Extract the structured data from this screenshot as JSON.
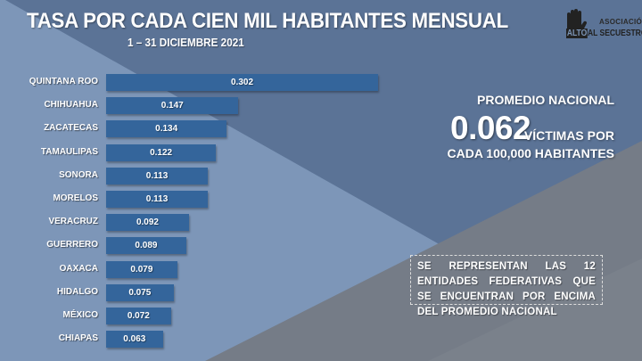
{
  "header": {
    "title": "TASA POR CADA CIEN MIL HABITANTES MENSUAL",
    "subtitle": "1 – 31 DICIEMBRE 2021"
  },
  "logo": {
    "small": "ASOCIACIÓN",
    "alto": "ALTO",
    "name": "AL SECUESTRO"
  },
  "colors": {
    "bar": "#34659b",
    "background_dark": "#5b7396",
    "background_light": "#7d96b8",
    "background_grey": "#757c87"
  },
  "chart_data": {
    "type": "bar",
    "orientation": "horizontal",
    "categories": [
      "QUINTANA ROO",
      "CHIHUAHUA",
      "ZACATECAS",
      "TAMAULIPAS",
      "SONORA",
      "MORELOS",
      "VERACRUZ",
      "GUERRERO",
      "OAXACA",
      "HIDALGO",
      "MÉXICO",
      "CHIAPAS"
    ],
    "values": [
      0.302,
      0.147,
      0.134,
      0.122,
      0.113,
      0.113,
      0.092,
      0.089,
      0.079,
      0.075,
      0.072,
      0.063
    ],
    "value_labels": [
      "0.302",
      "0.147",
      "0.134",
      "0.122",
      "0.113",
      "0.113",
      "0.092",
      "0.089",
      "0.079",
      "0.075",
      "0.072",
      "0.063"
    ],
    "title": "TASA POR CADA CIEN MIL HABITANTES MENSUAL",
    "grid": false
  },
  "promedio": {
    "label": "PROMEDIO NACIONAL",
    "value": "0.062",
    "unit_line1": "VÍCTIMAS POR",
    "unit_line2": "CADA 100,000 HABITANTES"
  },
  "note": "SE REPRESENTAN LAS 12 ENTIDADES FEDERATIVAS QUE SE ENCUENTRAN POR ENCIMA DEL PROMEDIO NACIONAL"
}
